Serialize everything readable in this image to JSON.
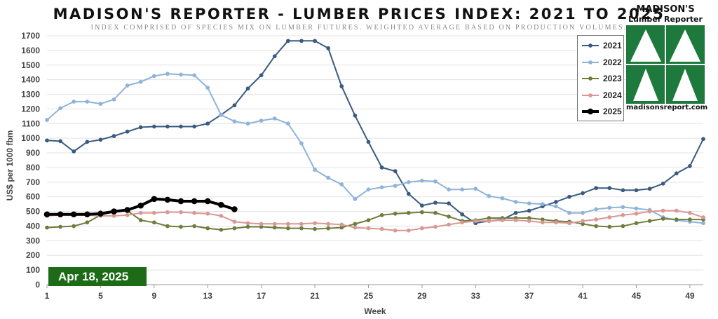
{
  "title": "MADISON'S REPORTER - LUMBER PRICES INDEX: 2021 TO 2025",
  "subtitle": "INDEX COMPRISED OF SPECIES MIX ON LUMBER FUTURES. WEIGHTED AVERAGE BASED ON PRODUCTION VOLUMES.",
  "logo": {
    "name": "MADISON'S",
    "subname": "Lumber Reporter",
    "url": "madisonsreport.com"
  },
  "date_badge": "Apr 18, 2025",
  "colors": {
    "badge": "#1d6b16",
    "logo_green": "#1e7a3c"
  },
  "chart_data": {
    "type": "line",
    "xlabel": "Week",
    "ylabel": "US$ per 1000 fbm",
    "xlim": [
      1,
      50
    ],
    "ylim": [
      0,
      1700
    ],
    "xticks": [
      1,
      5,
      9,
      13,
      17,
      21,
      25,
      29,
      33,
      37,
      41,
      45,
      49
    ],
    "yticks": [
      0,
      100,
      200,
      300,
      400,
      500,
      600,
      700,
      800,
      900,
      1000,
      1100,
      1200,
      1300,
      1400,
      1500,
      1600,
      1700
    ],
    "grid": "horizontal",
    "legend_position": "top-right",
    "series": [
      {
        "name": "2021",
        "color": "#3b5a80",
        "width": 2,
        "marker": 4,
        "x": [
          1,
          2,
          3,
          4,
          5,
          6,
          7,
          8,
          9,
          10,
          11,
          12,
          13,
          14,
          15,
          16,
          17,
          18,
          19,
          20,
          21,
          22,
          23,
          24,
          25,
          26,
          27,
          28,
          29,
          30,
          31,
          32,
          33,
          34,
          35,
          36,
          37,
          38,
          39,
          40,
          41,
          42,
          43,
          44,
          45,
          46,
          47,
          48,
          49,
          50
        ],
        "values": [
          985,
          980,
          910,
          975,
          990,
          1015,
          1045,
          1075,
          1080,
          1080,
          1080,
          1080,
          1100,
          1160,
          1225,
          1340,
          1430,
          1560,
          1665,
          1665,
          1665,
          1615,
          1355,
          1155,
          975,
          800,
          775,
          620,
          540,
          560,
          555,
          480,
          420,
          435,
          445,
          490,
          505,
          535,
          565,
          600,
          625,
          660,
          660,
          645,
          645,
          655,
          690,
          760,
          810,
          995
        ]
      },
      {
        "name": "2022",
        "color": "#8fb3d9",
        "width": 2,
        "marker": 4,
        "x": [
          1,
          2,
          3,
          4,
          5,
          6,
          7,
          8,
          9,
          10,
          11,
          12,
          13,
          14,
          15,
          16,
          17,
          18,
          19,
          20,
          21,
          22,
          23,
          24,
          25,
          26,
          27,
          28,
          29,
          30,
          31,
          32,
          33,
          34,
          35,
          36,
          37,
          38,
          39,
          40,
          41,
          42,
          43,
          44,
          45,
          46,
          47,
          48,
          49,
          50
        ],
        "values": [
          1125,
          1205,
          1250,
          1250,
          1235,
          1265,
          1360,
          1385,
          1425,
          1440,
          1435,
          1430,
          1345,
          1160,
          1115,
          1100,
          1120,
          1135,
          1100,
          965,
          785,
          730,
          685,
          585,
          650,
          665,
          675,
          700,
          710,
          705,
          650,
          650,
          655,
          605,
          590,
          565,
          555,
          550,
          535,
          490,
          490,
          515,
          525,
          530,
          520,
          510,
          460,
          440,
          430,
          420
        ]
      },
      {
        "name": "2023",
        "color": "#6e7d3c",
        "width": 2,
        "marker": 4,
        "x": [
          1,
          2,
          3,
          4,
          5,
          6,
          7,
          8,
          9,
          10,
          11,
          12,
          13,
          14,
          15,
          16,
          17,
          18,
          19,
          20,
          21,
          22,
          23,
          24,
          25,
          26,
          27,
          28,
          29,
          30,
          31,
          32,
          33,
          34,
          35,
          36,
          37,
          38,
          39,
          40,
          41,
          42,
          43,
          44,
          45,
          46,
          47,
          48,
          49,
          50
        ],
        "values": [
          390,
          395,
          400,
          425,
          475,
          500,
          505,
          440,
          425,
          400,
          395,
          400,
          385,
          375,
          385,
          395,
          395,
          390,
          385,
          385,
          380,
          385,
          390,
          415,
          440,
          475,
          485,
          490,
          495,
          490,
          465,
          435,
          440,
          455,
          455,
          455,
          455,
          445,
          435,
          430,
          415,
          400,
          395,
          400,
          420,
          435,
          450,
          445,
          445,
          445
        ]
      },
      {
        "name": "2024",
        "color": "#d99896",
        "width": 2,
        "marker": 4,
        "x": [
          1,
          2,
          3,
          4,
          5,
          6,
          7,
          8,
          9,
          10,
          11,
          12,
          13,
          14,
          15,
          16,
          17,
          18,
          19,
          20,
          21,
          22,
          23,
          24,
          25,
          26,
          27,
          28,
          29,
          30,
          31,
          32,
          33,
          34,
          35,
          36,
          37,
          38,
          39,
          40,
          41,
          42,
          43,
          44,
          45,
          46,
          47,
          48,
          49,
          50
        ],
        "values": [
          470,
          475,
          475,
          475,
          470,
          470,
          475,
          490,
          490,
          495,
          495,
          490,
          485,
          470,
          430,
          420,
          415,
          415,
          415,
          415,
          420,
          415,
          410,
          390,
          385,
          380,
          370,
          370,
          385,
          395,
          410,
          425,
          435,
          435,
          440,
          440,
          435,
          425,
          425,
          420,
          435,
          445,
          460,
          475,
          485,
          500,
          505,
          505,
          490,
          460
        ]
      },
      {
        "name": "2025",
        "color": "#000000",
        "width": 4,
        "marker": 6,
        "x": [
          1,
          2,
          3,
          4,
          5,
          6,
          7,
          8,
          9,
          10,
          11,
          12,
          13,
          14,
          15
        ],
        "values": [
          480,
          480,
          480,
          480,
          485,
          500,
          510,
          540,
          585,
          580,
          570,
          570,
          570,
          545,
          515
        ]
      }
    ]
  }
}
